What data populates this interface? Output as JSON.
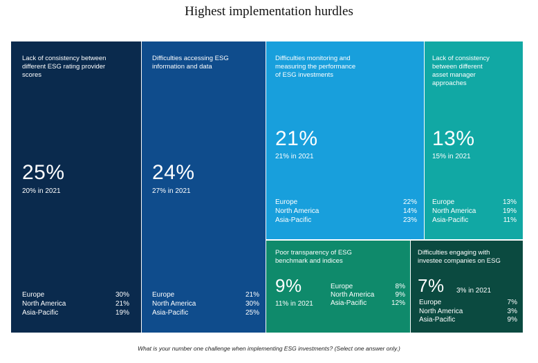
{
  "title": "Highest implementation hurdles",
  "footer": "What is your number one challenge when implementing ESG investments? (Select one answer only.)",
  "colors": {
    "t1": "#0a2a4d",
    "t2": "#0f4c8c",
    "t3": "#189fdc",
    "t4": "#11a8a4",
    "t5": "#0f8a6b",
    "t6": "#0b4a40"
  },
  "chart_data": {
    "type": "treemap",
    "title": "Highest implementation hurdles",
    "items": [
      {
        "id": "t1",
        "label": "Lack of consistency between\ndifferent ESG rating provider\nscores",
        "value": 25,
        "value_text": "25%",
        "prior_text": "20% in 2021",
        "regions": [
          {
            "name": "Europe",
            "value": 30,
            "text": "30%"
          },
          {
            "name": "North America",
            "value": 21,
            "text": "21%"
          },
          {
            "name": "Asia-Pacific",
            "value": 19,
            "text": "19%"
          }
        ]
      },
      {
        "id": "t2",
        "label": "Difficulties accessing ESG\ninformation and data",
        "value": 24,
        "value_text": "24%",
        "prior_text": "27% in 2021",
        "regions": [
          {
            "name": "Europe",
            "value": 21,
            "text": "21%"
          },
          {
            "name": "North America",
            "value": 30,
            "text": "30%"
          },
          {
            "name": "Asia-Pacific",
            "value": 25,
            "text": "25%"
          }
        ]
      },
      {
        "id": "t3",
        "label": "Difficulties monitoring and\nmeasuring the performance\nof ESG investments",
        "value": 21,
        "value_text": "21%",
        "prior_text": "21% in 2021",
        "regions": [
          {
            "name": "Europe",
            "value": 22,
            "text": "22%"
          },
          {
            "name": "North America",
            "value": 14,
            "text": "14%"
          },
          {
            "name": "Asia-Pacific",
            "value": 23,
            "text": "23%"
          }
        ]
      },
      {
        "id": "t4",
        "label": "Lack of consistency\nbetween different\nasset manager\napproaches",
        "value": 13,
        "value_text": "13%",
        "prior_text": "15% in 2021",
        "regions": [
          {
            "name": "Europe",
            "value": 13,
            "text": "13%"
          },
          {
            "name": "North America",
            "value": 19,
            "text": "19%"
          },
          {
            "name": "Asia-Pacific",
            "value": 11,
            "text": "11%"
          }
        ]
      },
      {
        "id": "t5",
        "label": "Poor transparency of ESG\nbenchmark and indices",
        "value": 9,
        "value_text": "9%",
        "prior_text": "11% in 2021",
        "regions": [
          {
            "name": "Europe",
            "value": 8,
            "text": "8%"
          },
          {
            "name": "North America",
            "value": 9,
            "text": "9%"
          },
          {
            "name": "Asia-Pacific",
            "value": 12,
            "text": "12%"
          }
        ]
      },
      {
        "id": "t6",
        "label": "Difficulties engaging with\ninvestee companies on ESG",
        "value": 7,
        "value_text": "7%",
        "prior_text": "3% in 2021",
        "regions": [
          {
            "name": "Europe",
            "value": 7,
            "text": "7%"
          },
          {
            "name": "North America",
            "value": 3,
            "text": "3%"
          },
          {
            "name": "Asia-Pacific",
            "value": 9,
            "text": "9%"
          }
        ]
      }
    ]
  }
}
